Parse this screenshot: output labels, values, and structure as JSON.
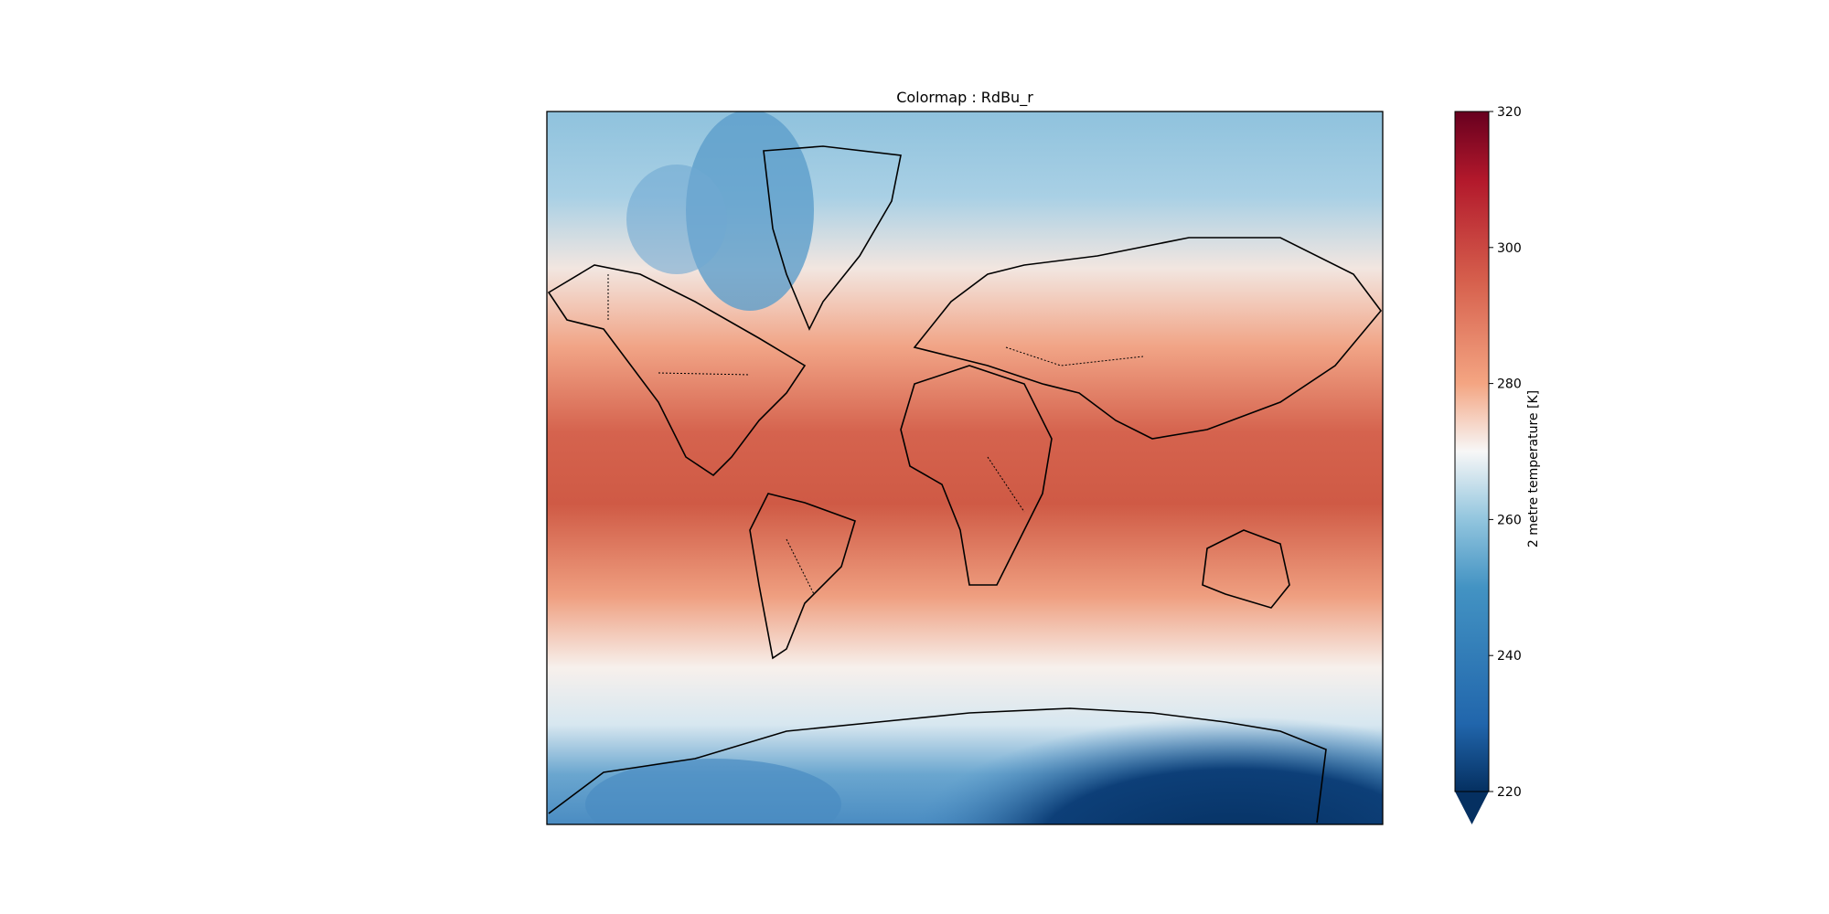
{
  "title": "Colormap : RdBu_r",
  "colorbar": {
    "label": "2 metre temperature [K]",
    "lim": [
      220,
      320
    ],
    "ticks": [
      220,
      240,
      260,
      280,
      300,
      320
    ],
    "extend": "min"
  }
}
